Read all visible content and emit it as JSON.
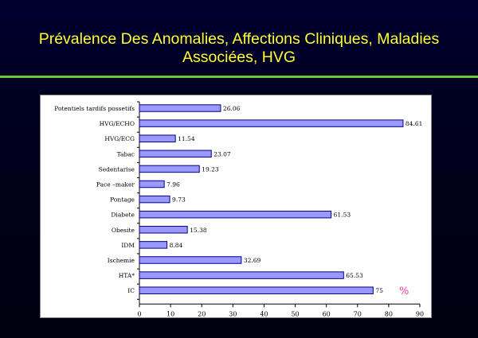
{
  "slide": {
    "title_line1": "Prévalence Des Anomalies, Affections Cliniques, Maladies",
    "title_line2": "Associées, HVG",
    "title_color": "#ffff33",
    "rule_color": "#66cc33"
  },
  "chart_data": {
    "type": "bar",
    "orientation": "horizontal",
    "categories": [
      "Potentiels tardifs possetifs",
      "HVG/ECHO",
      "HVG/ECG",
      "Tabac",
      "Sedentarise",
      "Pace –maker",
      "Pontage",
      "Diabete",
      "Obesite",
      "IDM",
      "Ischemie",
      "HTA*",
      "IC"
    ],
    "values": [
      26.06,
      84.61,
      11.54,
      23.07,
      19.23,
      7.96,
      9.73,
      61.53,
      15.38,
      8.84,
      32.69,
      65.53,
      75
    ],
    "value_labels": [
      "26.06",
      "84.61",
      "11.54",
      "23.07",
      "19.23",
      "7.96",
      "9.73",
      "61.53",
      "15.38",
      "8.84",
      "32.69",
      "65.53",
      "75"
    ],
    "xlim": [
      0,
      90
    ],
    "xticks": [
      "0",
      "10",
      "20",
      "30",
      "40",
      "50",
      "60",
      "70",
      "80",
      "90"
    ],
    "unit_annotation": "%",
    "bar_color": "#9999ff",
    "bar_edge_color": "#000080",
    "annotation_color": "#ff3399",
    "grid": false,
    "legend": false
  }
}
